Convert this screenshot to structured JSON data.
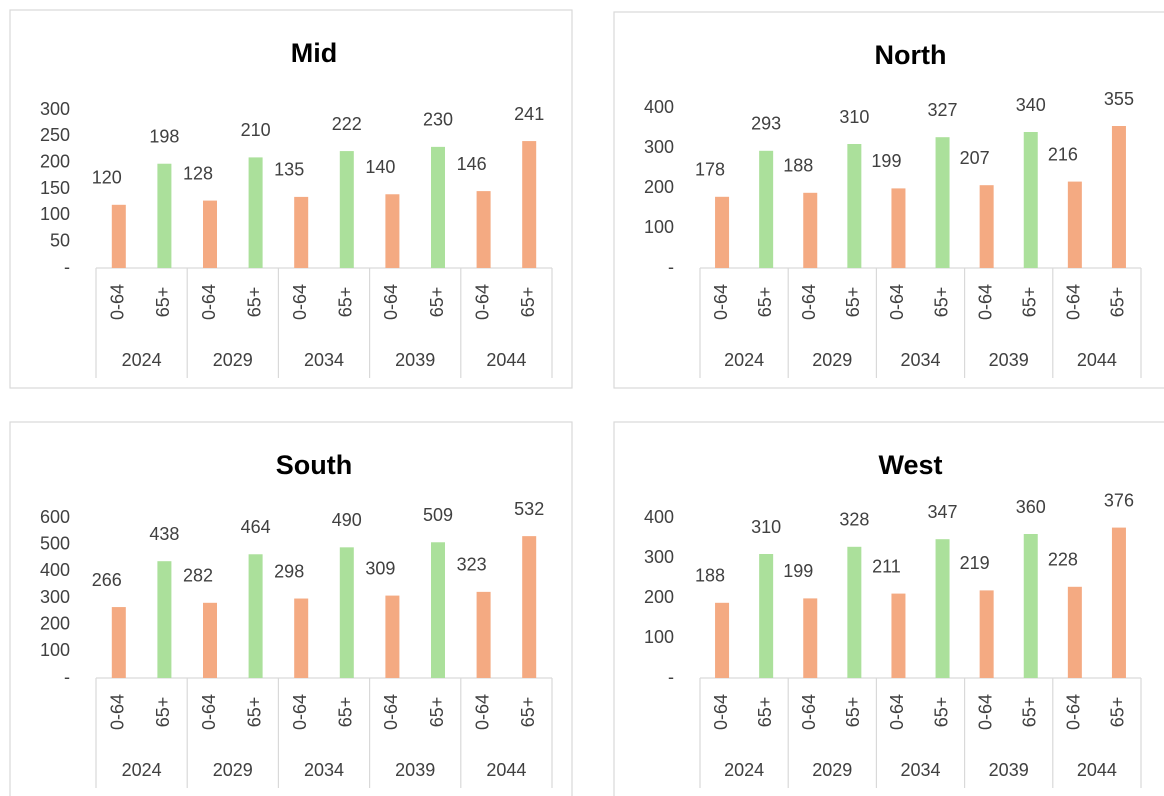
{
  "chart_data": [
    {
      "type": "bar",
      "title": "Mid",
      "categories": [
        "0-64",
        "65+",
        "0-64",
        "65+",
        "0-64",
        "65+",
        "0-64",
        "65+",
        "0-64",
        "65+"
      ],
      "groups": [
        "2024",
        "2029",
        "2034",
        "2039",
        "2044"
      ],
      "values": [
        120,
        198,
        128,
        210,
        135,
        222,
        140,
        230,
        146,
        241
      ],
      "colors": [
        "#f4aa82",
        "#abe09b",
        "#f4aa82",
        "#abe09b",
        "#f4aa82",
        "#abe09b",
        "#f4aa82",
        "#abe09b",
        "#f4aa82",
        "#f4aa82"
      ],
      "ylim": [
        0,
        300
      ],
      "yticks": [
        {
          "value": 0,
          "label": "-"
        },
        50,
        100,
        150,
        200,
        250,
        300
      ]
    },
    {
      "type": "bar",
      "title": "North",
      "categories": [
        "0-64",
        "65+",
        "0-64",
        "65+",
        "0-64",
        "65+",
        "0-64",
        "65+",
        "0-64",
        "65+"
      ],
      "groups": [
        "2024",
        "2029",
        "2034",
        "2039",
        "2044"
      ],
      "values": [
        178,
        293,
        188,
        310,
        199,
        327,
        207,
        340,
        216,
        355
      ],
      "colors": [
        "#f4aa82",
        "#abe09b",
        "#f4aa82",
        "#abe09b",
        "#f4aa82",
        "#abe09b",
        "#f4aa82",
        "#abe09b",
        "#f4aa82",
        "#f4aa82"
      ],
      "ylim": [
        0,
        400
      ],
      "yticks": [
        {
          "value": 0,
          "label": "-"
        },
        100,
        200,
        300,
        400
      ]
    },
    {
      "type": "bar",
      "title": "South",
      "categories": [
        "0-64",
        "65+",
        "0-64",
        "65+",
        "0-64",
        "65+",
        "0-64",
        "65+",
        "0-64",
        "65+"
      ],
      "groups": [
        "2024",
        "2029",
        "2034",
        "2039",
        "2044"
      ],
      "values": [
        266,
        438,
        282,
        464,
        298,
        490,
        309,
        509,
        323,
        532
      ],
      "colors": [
        "#f4aa82",
        "#abe09b",
        "#f4aa82",
        "#abe09b",
        "#f4aa82",
        "#abe09b",
        "#f4aa82",
        "#abe09b",
        "#f4aa82",
        "#f4aa82"
      ],
      "ylim": [
        0,
        600
      ],
      "yticks": [
        {
          "value": 0,
          "label": "-"
        },
        100,
        200,
        300,
        400,
        500,
        600
      ]
    },
    {
      "type": "bar",
      "title": "West",
      "categories": [
        "0-64",
        "65+",
        "0-64",
        "65+",
        "0-64",
        "65+",
        "0-64",
        "65+",
        "0-64",
        "65+"
      ],
      "groups": [
        "2024",
        "2029",
        "2034",
        "2039",
        "2044"
      ],
      "values": [
        188,
        310,
        199,
        328,
        211,
        347,
        219,
        360,
        228,
        376
      ],
      "colors": [
        "#f4aa82",
        "#abe09b",
        "#f4aa82",
        "#abe09b",
        "#f4aa82",
        "#abe09b",
        "#f4aa82",
        "#abe09b",
        "#f4aa82",
        "#f4aa82"
      ],
      "ylim": [
        0,
        400
      ],
      "yticks": [
        {
          "value": 0,
          "label": "-"
        },
        100,
        200,
        300,
        400
      ]
    }
  ]
}
